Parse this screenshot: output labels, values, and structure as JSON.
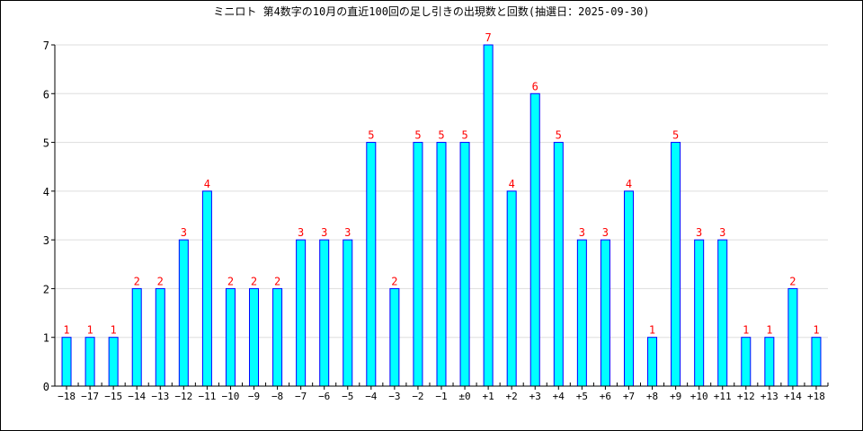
{
  "chart_data": {
    "type": "bar",
    "title": "ミニロト 第4数字の10月の直近100回の足し引きの出現数と回数(抽選日：2025-09-30)",
    "xlabel": "",
    "ylabel": "",
    "ylim": [
      0,
      7
    ],
    "yticks": [
      0,
      1,
      2,
      3,
      4,
      5,
      6,
      7
    ],
    "grid": true,
    "categories": [
      "−18",
      "−17",
      "−15",
      "−14",
      "−13",
      "−12",
      "−11",
      "−10",
      "−9",
      "−8",
      "−7",
      "−6",
      "−5",
      "−4",
      "−3",
      "−2",
      "−1",
      "±0",
      "+1",
      "+2",
      "+3",
      "+4",
      "+5",
      "+6",
      "+7",
      "+8",
      "+9",
      "+10",
      "+11",
      "+12",
      "+13",
      "+14",
      "+18"
    ],
    "values": [
      1,
      1,
      1,
      2,
      2,
      3,
      4,
      2,
      2,
      2,
      3,
      3,
      3,
      5,
      2,
      5,
      5,
      5,
      7,
      4,
      6,
      5,
      3,
      3,
      4,
      1,
      5,
      3,
      3,
      1,
      1,
      2,
      1
    ],
    "colors": {
      "bar_fill": "#00ffff",
      "bar_stroke": "#0000ff",
      "label": "#ff0000",
      "grid": "#dddddd"
    }
  }
}
